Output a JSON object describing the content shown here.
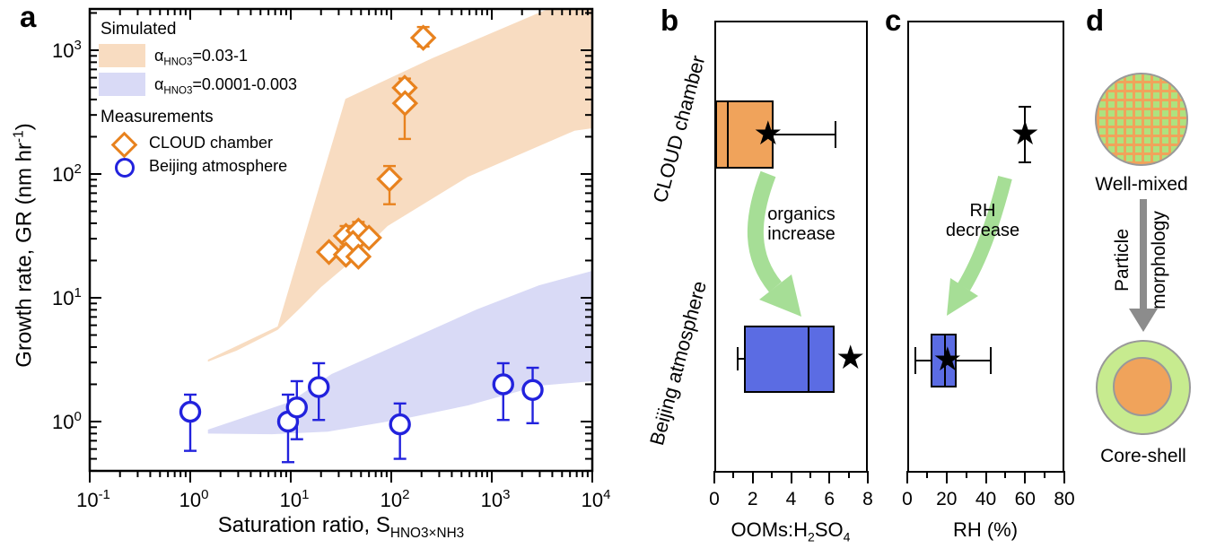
{
  "colors": {
    "orange_marker": "#E8821E",
    "blue_marker": "#2222DD",
    "orange_band": "#F8DCC1",
    "blue_band": "#D9DAF6",
    "orange_box": "#F0A35B",
    "blue_box": "#5B6CE3",
    "green_arrow": "#A6DE96",
    "gray_arrow": "#8C8C8C",
    "shell_green": "#C7EB8F",
    "mixed_green": "#AEE27F",
    "circle_border": "#999999"
  },
  "panel_a": {
    "letter": "a",
    "legend": {
      "simulated_header": "Simulated",
      "band1": {
        "alpha": "α",
        "sub": "HNO3",
        "rest": "=0.03-1"
      },
      "band2": {
        "alpha": "α",
        "sub": "HNO3",
        "rest": "=0.0001-0.003"
      },
      "measurements_header": "Measurements",
      "cloud_label": "CLOUD chamber",
      "beijing_label": "Beijing atmosphere"
    },
    "x_title": {
      "prefix": "Saturation ratio, S",
      "sub": "HNO3×NH3"
    },
    "y_title": {
      "prefix": "Growth rate, GR (nm hr",
      "sup": "-1",
      "suffix": ")"
    }
  },
  "panel_b": {
    "letter": "b",
    "x_label_parts": {
      "p1": "OOMs:H",
      "s1": "2",
      "p2": "SO",
      "s2": "4"
    },
    "category_top": "CLOUD chamber",
    "category_bottom": "Beijing atmosphere",
    "annotation_line1": "organics",
    "annotation_line2": "increase"
  },
  "panel_c": {
    "letter": "c",
    "x_label": "RH (%)",
    "annotation_line1": "RH",
    "annotation_line2": "decrease"
  },
  "panel_d": {
    "letter": "d",
    "top_label": "Well-mixed",
    "bottom_label": "Core-shell",
    "arrow_label_line1": "Particle",
    "arrow_label_line2": "morphology"
  },
  "chart_data": [
    {
      "panel": "a",
      "type": "scatter",
      "x_scale": "log",
      "y_scale": "log",
      "xlabel": "Saturation ratio, S_HNO3×NH3",
      "ylabel": "Growth rate, GR (nm hr-1)",
      "x_range": [
        0.1,
        10000
      ],
      "y_range": [
        0.4,
        2150
      ],
      "x_tick_exponents": [
        -1,
        0,
        1,
        2,
        3,
        4
      ],
      "y_tick_exponents": [
        0,
        1,
        2,
        3
      ],
      "bands": [
        {
          "name": "aHNO3-0.03-1",
          "legend": "αHNO3=0.03-1",
          "points": [
            [
              1.5,
              3.16
            ],
            [
              7.4,
              5.86
            ],
            [
              35,
              405
            ],
            [
              255,
              860
            ],
            [
              3600,
              2150
            ],
            [
              10000,
              2150
            ],
            [
              10000,
              234
            ],
            [
              6650,
              224
            ],
            [
              580,
              95
            ],
            [
              92,
              38
            ],
            [
              41,
              20
            ],
            [
              20,
              12.2
            ],
            [
              12,
              8.05
            ],
            [
              7.4,
              5.5
            ],
            [
              2.9,
              3.74
            ],
            [
              1.5,
              3.05
            ]
          ]
        },
        {
          "name": "aHNO3-0.0001-0.003",
          "legend": "αHNO3=0.0001-0.003",
          "points": [
            [
              1.5,
              0.86
            ],
            [
              9.8,
              1.44
            ],
            [
              25.5,
              2.42
            ],
            [
              113,
              4.13
            ],
            [
              708,
              8.05
            ],
            [
              2950,
              12.6
            ],
            [
              10000,
              16.5
            ],
            [
              10000,
              2.12
            ],
            [
              2950,
              1.95
            ],
            [
              580,
              1.35
            ],
            [
              130,
              1.05
            ],
            [
              23.4,
              0.83
            ],
            [
              6.5,
              0.79
            ],
            [
              1.5,
              0.8
            ]
          ]
        }
      ],
      "series": [
        {
          "name": "CLOUD chamber",
          "marker": "diamond",
          "points": [
            {
              "s": 208,
              "gr": 1260,
              "lo": 1070,
              "hi": 1540
            },
            {
              "s": 136,
              "gr": 497,
              "lo": 192,
              "hi": 590
            },
            {
              "s": 137,
              "gr": 373
            },
            {
              "s": 96,
              "gr": 91,
              "lo": 57,
              "hi": 116
            },
            {
              "s": 24,
              "gr": 23.4
            },
            {
              "s": 35.4,
              "gr": 31.6,
              "lo": 26,
              "hi": 38
            },
            {
              "s": 47.1,
              "gr": 34.9,
              "lo": 29,
              "hi": 41
            },
            {
              "s": 41.6,
              "gr": 27.7
            },
            {
              "s": 35.4,
              "gr": 22.3
            },
            {
              "s": 47.1,
              "gr": 21.5
            },
            {
              "s": 60,
              "gr": 30.6
            }
          ]
        },
        {
          "name": "Beijing atmosphere",
          "marker": "circle",
          "points": [
            {
              "s": 1.0,
              "gr": 1.2,
              "lo": 0.58,
              "hi": 1.65
            },
            {
              "s": 9.4,
              "gr": 1.0,
              "lo": 0.47,
              "hi": 1.65
            },
            {
              "s": 11.5,
              "gr": 1.3,
              "lo": 0.72,
              "hi": 2.12
            },
            {
              "s": 19,
              "gr": 1.9,
              "lo": 1.03,
              "hi": 2.96
            },
            {
              "s": 122,
              "gr": 0.95,
              "lo": 0.5,
              "hi": 1.4
            },
            {
              "s": 1300,
              "gr": 2.0,
              "lo": 1.03,
              "hi": 2.96
            },
            {
              "s": 2550,
              "gr": 1.8,
              "lo": 0.97,
              "hi": 2.72
            }
          ]
        }
      ]
    },
    {
      "panel": "b",
      "type": "boxplot",
      "orientation": "horizontal",
      "xlabel": "OOMs:H2SO4",
      "x_ticks": [
        0,
        2,
        4,
        6,
        8
      ],
      "x_minor_ticks": [
        1,
        3,
        5,
        7
      ],
      "x_max": 8,
      "rows": [
        {
          "category": "CLOUD chamber",
          "q1": 0.05,
          "median": 0.7,
          "q3": 3.1,
          "whisker_high": 6.3,
          "star": 2.8
        },
        {
          "category": "Beijing atmosphere",
          "q1": 1.55,
          "median": 4.9,
          "q3": 6.25,
          "whisker_low": 1.2,
          "star": 7.1
        }
      ]
    },
    {
      "panel": "c",
      "type": "boxplot",
      "orientation": "horizontal",
      "xlabel": "RH (%)",
      "x_ticks": [
        0,
        20,
        40,
        60,
        80
      ],
      "x_minor_ticks": [
        10,
        30,
        50,
        70
      ],
      "x_max": 80,
      "rows": [
        {
          "category": "CLOUD chamber",
          "star": 60
        },
        {
          "category": "Beijing atmosphere",
          "q1": 12,
          "median": 19,
          "q3": 25,
          "whisker_low": 4,
          "whisker_high": 42.5,
          "star": 20.5
        }
      ]
    }
  ]
}
